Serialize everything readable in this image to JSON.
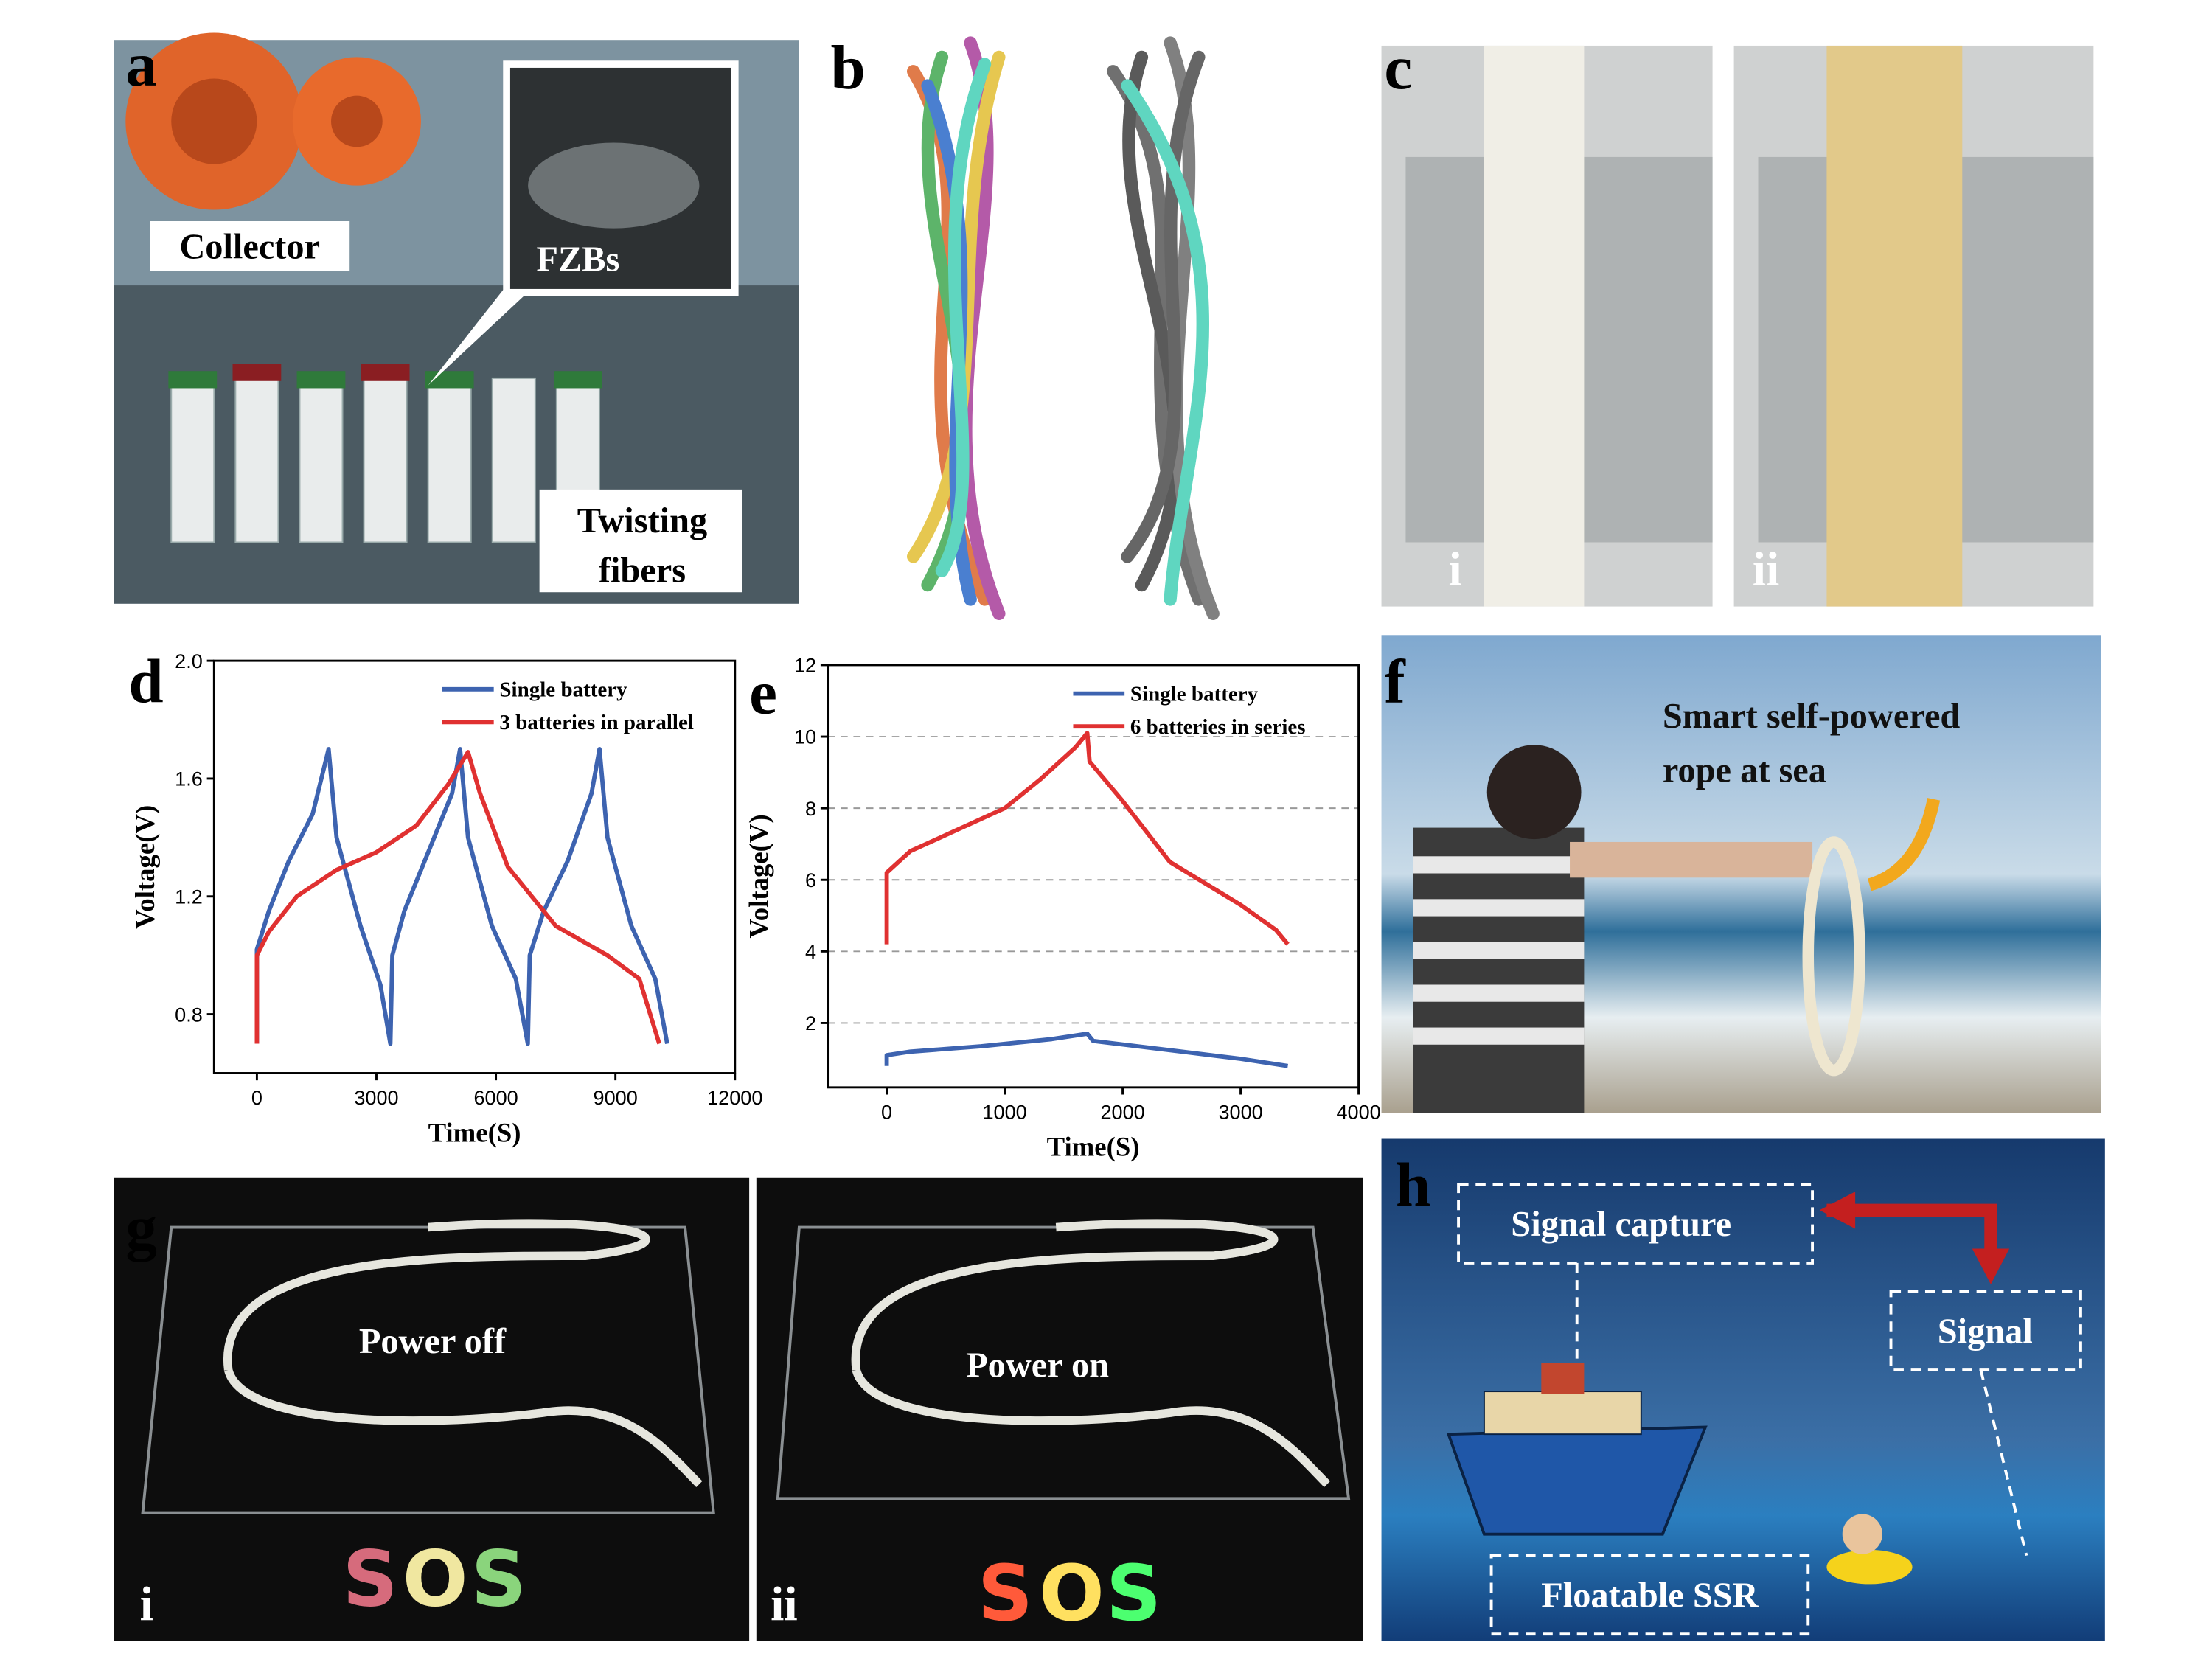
{
  "panels": {
    "a": {
      "label": "a",
      "annotations": [
        "Collector",
        "FZBs",
        [
          "Twisting",
          "fibers"
        ]
      ]
    },
    "b": {
      "label": "b"
    },
    "c": {
      "label": "c",
      "sub": [
        "i",
        "ii"
      ]
    },
    "f": {
      "label": "f",
      "annotation": [
        "Smart self-powered",
        "rope at sea"
      ]
    },
    "g": {
      "label": "g",
      "sub": [
        "i",
        "ii"
      ],
      "annotations": [
        "Power off",
        "Power on"
      ],
      "sign": [
        "S",
        "O",
        "S"
      ]
    },
    "h": {
      "label": "h",
      "annotations": [
        "Signal capture",
        "Signal",
        "Floatable SSR"
      ]
    }
  },
  "chart_data": [
    {
      "type": "line",
      "panel_label": "d",
      "xlabel": "Time(S)",
      "ylabel": "Voltage(V)",
      "xlim": [
        -1075,
        12000
      ],
      "ylim": [
        0.6,
        2.0
      ],
      "xticks": [
        0,
        3000,
        6000,
        9000,
        12000
      ],
      "yticks": [
        0.8,
        1.2,
        1.6,
        {
          "value": 2.0,
          "label": "2.0"
        }
      ],
      "grid": false,
      "legend": "top-right",
      "series": [
        {
          "name": "Single battery",
          "color": "#3d63b0",
          "x": [
            0,
            0,
            300,
            800,
            1400,
            1800,
            2000,
            2600,
            3100,
            3350,
            3400,
            3700,
            4300,
            4900,
            5100,
            5300,
            5900,
            6500,
            6800,
            6850,
            7200,
            7800,
            8400,
            8600,
            8800,
            9400,
            10000,
            10300
          ],
          "values": [
            0.7,
            1.02,
            1.15,
            1.32,
            1.48,
            1.7,
            1.4,
            1.1,
            0.9,
            0.7,
            1.0,
            1.15,
            1.35,
            1.55,
            1.7,
            1.4,
            1.1,
            0.92,
            0.7,
            1.0,
            1.15,
            1.32,
            1.55,
            1.7,
            1.4,
            1.1,
            0.92,
            0.7
          ]
        },
        {
          "name": "3 batteries in parallel",
          "color": "#e03131",
          "x": [
            0,
            0,
            300,
            1000,
            2000,
            3000,
            4000,
            4800,
            5300,
            5600,
            6300,
            7500,
            8800,
            9600,
            10100
          ],
          "values": [
            0.7,
            1.0,
            1.08,
            1.2,
            1.29,
            1.35,
            1.44,
            1.58,
            1.69,
            1.55,
            1.3,
            1.1,
            1.0,
            0.92,
            0.7
          ]
        }
      ]
    },
    {
      "type": "line",
      "panel_label": "e",
      "xlabel": "Time(S)",
      "ylabel": "Voltage(V)",
      "xlim": [
        -500,
        4000
      ],
      "ylim": [
        0.2,
        12
      ],
      "xticks": [
        0,
        1000,
        2000,
        3000,
        4000
      ],
      "yticks": [
        2,
        4,
        6,
        8,
        10,
        12
      ],
      "grid": true,
      "legend": "top-right",
      "series": [
        {
          "name": "Single battery",
          "color": "#3d63b0",
          "x": [
            0,
            0,
            200,
            800,
            1400,
            1700,
            1750,
            2500,
            3000,
            3400
          ],
          "values": [
            0.8,
            1.1,
            1.2,
            1.35,
            1.55,
            1.7,
            1.5,
            1.2,
            1.0,
            0.8
          ]
        },
        {
          "name": "6 batteries in series",
          "color": "#e03131",
          "x": [
            0,
            0,
            200,
            600,
            1000,
            1300,
            1600,
            1700,
            1720,
            2000,
            2400,
            3000,
            3300,
            3400
          ],
          "values": [
            4.2,
            6.2,
            6.8,
            7.4,
            8.0,
            8.8,
            9.7,
            10.1,
            9.3,
            8.2,
            6.5,
            5.3,
            4.6,
            4.2
          ]
        }
      ]
    }
  ]
}
